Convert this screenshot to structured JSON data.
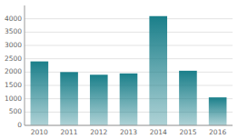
{
  "chart_data": {
    "type": "bar",
    "categories": [
      "2010",
      "2011",
      "2012",
      "2013",
      "2014",
      "2015",
      "2016"
    ],
    "values": [
      2400,
      2000,
      1900,
      1950,
      4100,
      2050,
      1050
    ],
    "color": "#1a7f8a",
    "ylim": [
      0,
      4500
    ],
    "yticks": [
      0,
      500,
      1000,
      1500,
      2000,
      2500,
      3000,
      3500,
      4000
    ],
    "grid": true
  }
}
